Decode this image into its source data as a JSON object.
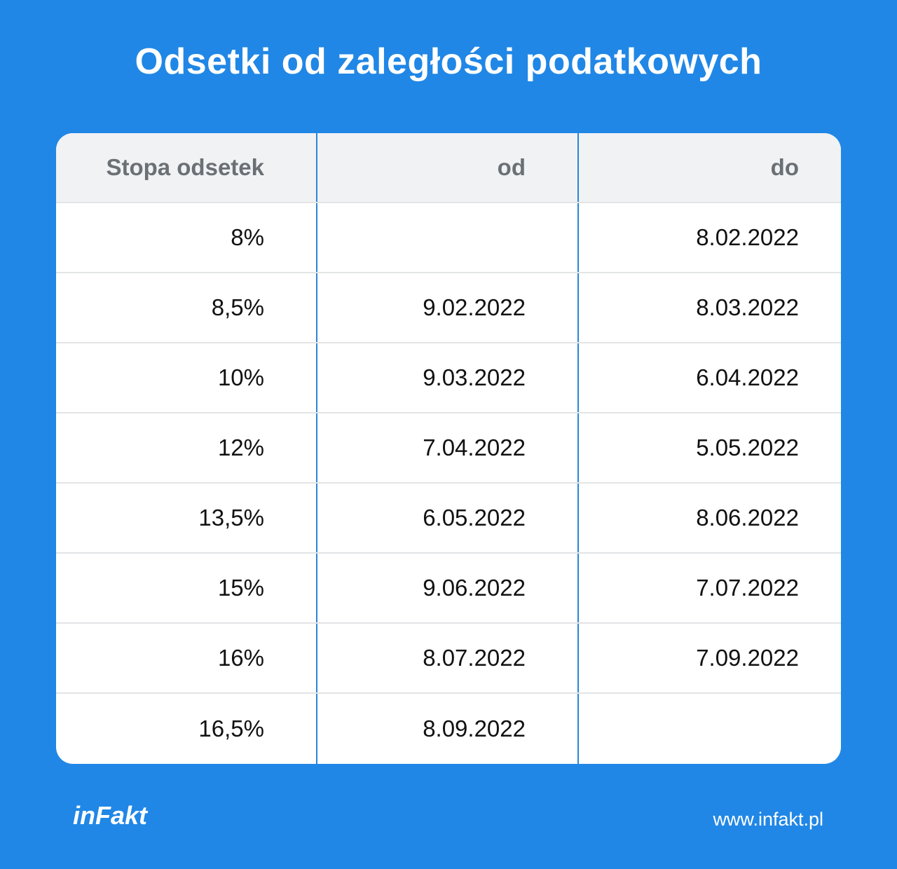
{
  "header": {
    "title": "Odsetki od zaległości podatkowych"
  },
  "table": {
    "columns": [
      "Stopa odsetek",
      "od",
      "do"
    ],
    "rows": [
      [
        "8%",
        null,
        "8.02.2022"
      ],
      [
        "8,5%",
        "9.02.2022",
        "8.03.2022"
      ],
      [
        "10%",
        "9.03.2022",
        "6.04.2022"
      ],
      [
        "12%",
        "7.04.2022",
        "5.05.2022"
      ],
      [
        "13,5%",
        "6.05.2022",
        "8.06.2022"
      ],
      [
        "15%",
        "9.06.2022",
        "7.07.2022"
      ],
      [
        "16%",
        "8.07.2022",
        "7.09.2022"
      ],
      [
        "16,5%",
        "8.09.2022",
        null
      ]
    ]
  },
  "footer": {
    "logo": "inFakt",
    "url": "www.infakt.pl"
  }
}
